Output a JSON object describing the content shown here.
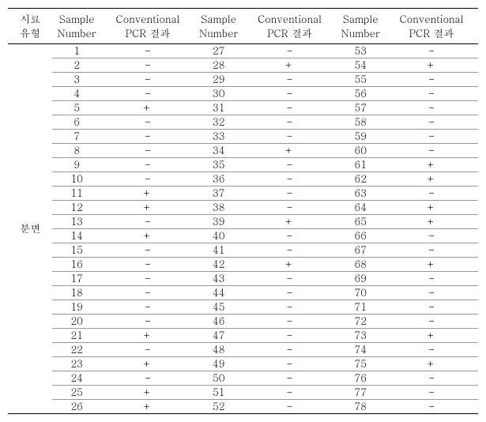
{
  "headers": {
    "type": "시료\n유형",
    "sample": "Sample\nNumber",
    "result": "Conventional\nPCR 결과"
  },
  "rowLabel": "분변",
  "rows": [
    {
      "n1": "1",
      "r1": "-",
      "n2": "27",
      "r2": "-",
      "n3": "53",
      "r3": "-"
    },
    {
      "n1": "2",
      "r1": "-",
      "n2": "28",
      "r2": "+",
      "n3": "54",
      "r3": "+"
    },
    {
      "n1": "3",
      "r1": "-",
      "n2": "29",
      "r2": "-",
      "n3": "55",
      "r3": "-"
    },
    {
      "n1": "4",
      "r1": "-",
      "n2": "30",
      "r2": "-",
      "n3": "56",
      "r3": "-"
    },
    {
      "n1": "5",
      "r1": "+",
      "n2": "31",
      "r2": "-",
      "n3": "57",
      "r3": "-"
    },
    {
      "n1": "6",
      "r1": "-",
      "n2": "32",
      "r2": "-",
      "n3": "58",
      "r3": "-"
    },
    {
      "n1": "7",
      "r1": "-",
      "n2": "33",
      "r2": "-",
      "n3": "59",
      "r3": "-"
    },
    {
      "n1": "8",
      "r1": "-",
      "n2": "34",
      "r2": "+",
      "n3": "60",
      "r3": "-"
    },
    {
      "n1": "9",
      "r1": "-",
      "n2": "35",
      "r2": "-",
      "n3": "61",
      "r3": "+"
    },
    {
      "n1": "10",
      "r1": "-",
      "n2": "36",
      "r2": "-",
      "n3": "62",
      "r3": "+"
    },
    {
      "n1": "11",
      "r1": "+",
      "n2": "37",
      "r2": "-",
      "n3": "63",
      "r3": "-"
    },
    {
      "n1": "12",
      "r1": "+",
      "n2": "38",
      "r2": "-",
      "n3": "64",
      "r3": "+"
    },
    {
      "n1": "13",
      "r1": "-",
      "n2": "39",
      "r2": "+",
      "n3": "65",
      "r3": "+"
    },
    {
      "n1": "14",
      "r1": "+",
      "n2": "40",
      "r2": "-",
      "n3": "66",
      "r3": "-"
    },
    {
      "n1": "15",
      "r1": "-",
      "n2": "41",
      "r2": "-",
      "n3": "67",
      "r3": "-"
    },
    {
      "n1": "16",
      "r1": "-",
      "n2": "42",
      "r2": "+",
      "n3": "68",
      "r3": "+"
    },
    {
      "n1": "17",
      "r1": "-",
      "n2": "43",
      "r2": "-",
      "n3": "69",
      "r3": "-"
    },
    {
      "n1": "18",
      "r1": "-",
      "n2": "44",
      "r2": "-",
      "n3": "70",
      "r3": "-"
    },
    {
      "n1": "19",
      "r1": "-",
      "n2": "45",
      "r2": "-",
      "n3": "71",
      "r3": "-"
    },
    {
      "n1": "20",
      "r1": "-",
      "n2": "46",
      "r2": "-",
      "n3": "72",
      "r3": "-"
    },
    {
      "n1": "21",
      "r1": "+",
      "n2": "47",
      "r2": "-",
      "n3": "73",
      "r3": "+"
    },
    {
      "n1": "22",
      "r1": "-",
      "n2": "48",
      "r2": "-",
      "n3": "74",
      "r3": "-"
    },
    {
      "n1": "23",
      "r1": "+",
      "n2": "49",
      "r2": "-",
      "n3": "75",
      "r3": "+"
    },
    {
      "n1": "24",
      "r1": "-",
      "n2": "50",
      "r2": "-",
      "n3": "76",
      "r3": "-"
    },
    {
      "n1": "25",
      "r1": "+",
      "n2": "51",
      "r2": "-",
      "n3": "77",
      "r3": "-"
    },
    {
      "n1": "26",
      "r1": "+",
      "n2": "52",
      "r2": "-",
      "n3": "78",
      "r3": "-"
    }
  ],
  "style": {
    "background_color": "#ffffff",
    "text_color": "#000000",
    "header_border_top": "#000000",
    "header_border_bottom": "#000000",
    "row_border": "#999999",
    "last_row_border": "#000000",
    "font_family": "Batang, serif",
    "header_fontsize": 13,
    "cell_fontsize": 13
  }
}
